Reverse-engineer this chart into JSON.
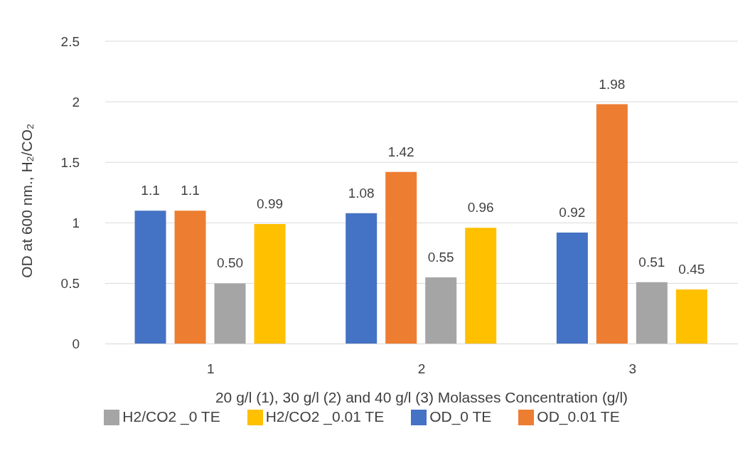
{
  "chart_data": {
    "type": "bar",
    "categories": [
      "1",
      "2",
      "3"
    ],
    "xlabel": "20 g/l (1), 30 g/l (2) and 40 g/l (3) Molasses Concentration (g/l)",
    "ylabel": "OD at 600 nm., H₂/CO₂",
    "series": [
      {
        "name": "OD_0 TE",
        "color": "#4472c4",
        "values": [
          1.1,
          1.08,
          0.92
        ],
        "value_labels": [
          "1.1",
          "1.08",
          "0.92"
        ]
      },
      {
        "name": "OD_0.01 TE",
        "color": "#ed7d31",
        "values": [
          1.1,
          1.42,
          1.98
        ],
        "value_labels": [
          "1.1",
          "1.42",
          "1.98"
        ]
      },
      {
        "name": "H2/CO2 _0 TE",
        "color": "#a5a5a5",
        "values": [
          0.5,
          0.55,
          0.51
        ],
        "value_labels": [
          "0.50",
          "0.55",
          "0.51"
        ]
      },
      {
        "name": "H2/CO2 _0.01 TE",
        "color": "#ffc000",
        "values": [
          0.99,
          0.96,
          0.45
        ],
        "value_labels": [
          "0.99",
          "0.96",
          "0.45"
        ]
      }
    ],
    "ylim": [
      0,
      2.5
    ],
    "yticks": [
      0,
      0.5,
      1,
      1.5,
      2,
      2.5
    ],
    "grid": "y",
    "legend": "bottom"
  }
}
